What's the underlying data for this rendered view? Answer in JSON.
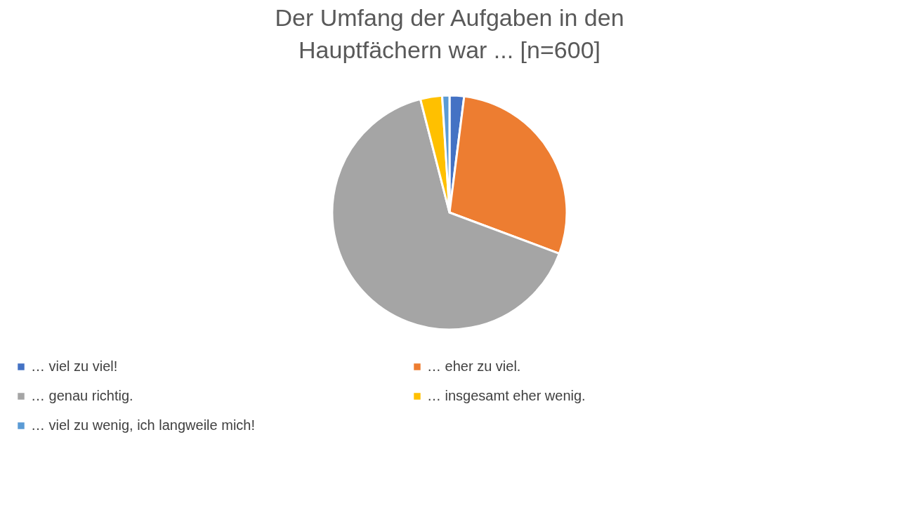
{
  "chart_data": {
    "type": "pie",
    "title": "Der Umfang der Aufgaben in den Hauptfächern war ... [n=600]",
    "categories": [
      "… viel zu viel!",
      "… eher zu viel.",
      "… genau richtig.",
      "… insgesamt eher wenig.",
      "… viel zu wenig, ich langweile mich!"
    ],
    "values": [
      2,
      28.7,
      65.3,
      3,
      1
    ],
    "colors": [
      "#4472c4",
      "#ed7d31",
      "#a5a5a5",
      "#ffc000",
      "#5b9bd5"
    ],
    "legend": "bottom"
  }
}
